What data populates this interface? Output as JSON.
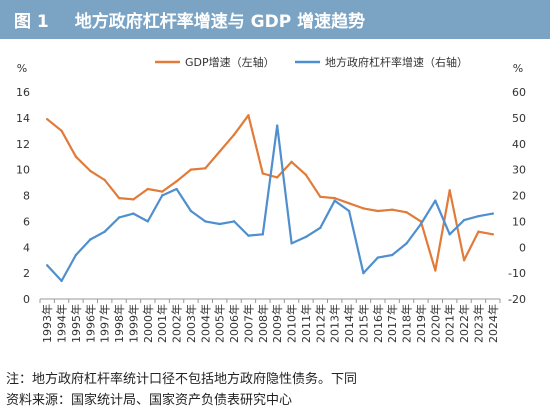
{
  "header": {
    "figure_no": "图 1",
    "title": "地方政府杠杆率增速与 GDP 增速趋势"
  },
  "notes": {
    "note": "注：地方政府杠杆率统计口径不包括地方政府隐性债务。下同",
    "source": "资料来源：国家统计局、国家资产负债表研究中心"
  },
  "colors": {
    "header_bg": "#7aa3c4",
    "gdp": "#e07b39",
    "lev": "#4f8fcf"
  },
  "chart_data": {
    "type": "line",
    "left_unit": "%",
    "right_unit": "%",
    "x": [
      "1993年",
      "1994年",
      "1995年",
      "1996年",
      "1997年",
      "1998年",
      "1999年",
      "2000年",
      "2001年",
      "2002年",
      "2003年",
      "2004年",
      "2005年",
      "2006年",
      "2007年",
      "2008年",
      "2009年",
      "2010年",
      "2011年",
      "2012年",
      "2013年",
      "2014年",
      "2015年",
      "2016年",
      "2017年",
      "2018年",
      "2019年",
      "2020年",
      "2021年",
      "2022年",
      "2023年",
      "2024年"
    ],
    "y_left": {
      "min": 0,
      "max": 16,
      "step": 2,
      "ticks": [
        "0",
        "2",
        "4",
        "6",
        "8",
        "10",
        "12",
        "14",
        "16"
      ]
    },
    "y_right": {
      "min": -20,
      "max": 60,
      "step": 10,
      "ticks": [
        "-20",
        "-10",
        "0",
        "10",
        "20",
        "30",
        "40",
        "50",
        "60"
      ]
    },
    "series": [
      {
        "name": "GDP增速（左轴）",
        "axis": "left",
        "color": "#e07b39",
        "values": [
          13.9,
          13.0,
          11.0,
          9.9,
          9.2,
          7.8,
          7.7,
          8.5,
          8.3,
          9.1,
          10.0,
          10.1,
          11.4,
          12.7,
          14.2,
          9.7,
          9.4,
          10.6,
          9.6,
          7.9,
          7.8,
          7.4,
          7.0,
          6.8,
          6.9,
          6.7,
          6.0,
          2.2,
          8.4,
          3.0,
          5.2,
          5.0
        ]
      },
      {
        "name": "地方政府杠杆率增速（右轴）",
        "axis": "right",
        "color": "#4f8fcf",
        "values": [
          -7,
          -13,
          -3,
          3,
          6,
          11.5,
          13,
          10,
          20,
          22.5,
          14,
          10,
          9,
          10,
          4.5,
          5,
          47,
          1.5,
          4,
          7.5,
          18,
          14,
          -10,
          -4,
          -3,
          1.5,
          9,
          18,
          5,
          10.5,
          12,
          13
        ]
      }
    ]
  }
}
